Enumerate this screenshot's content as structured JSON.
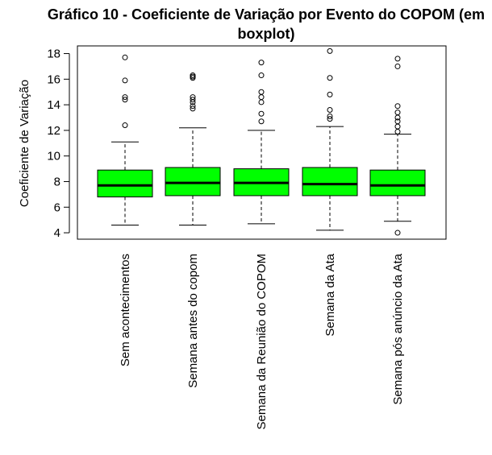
{
  "chart_data": {
    "type": "boxplot",
    "title_lines": [
      "Gráfico 10 - Coeficiente de Variação por Evento do COPOM (em",
      "boxplot)"
    ],
    "xlabel": "",
    "ylabel": "Coeficiente de Variação",
    "ylim": [
      3.5,
      18.6
    ],
    "yticks": [
      4,
      6,
      8,
      10,
      12,
      14,
      16,
      18
    ],
    "ytick_labels": [
      "4",
      "6",
      "8",
      "10",
      "12",
      "14",
      "16",
      "18"
    ],
    "grid": false,
    "box_fill": "#00ff00",
    "box_stroke": "#000000",
    "median_color": "#000000",
    "categories": [
      "Sem acontecimentos",
      "Semana antes do copom",
      "Semana da Reunião do COPOM",
      "Semana da Ata",
      "Semana pós anúncio da Ata"
    ],
    "boxes": [
      {
        "min": 4.6,
        "q1": 6.8,
        "median": 7.7,
        "q3": 8.9,
        "max": 11.1,
        "outliers": [
          12.4,
          14.4,
          14.6,
          15.9,
          17.7
        ]
      },
      {
        "min": 4.6,
        "q1": 6.9,
        "median": 7.9,
        "q3": 9.1,
        "max": 12.2,
        "outliers": [
          13.7,
          13.9,
          14.2,
          14.4,
          14.6,
          16.1,
          16.2,
          16.3
        ]
      },
      {
        "min": 4.7,
        "q1": 6.9,
        "median": 7.9,
        "q3": 9.0,
        "max": 12.0,
        "outliers": [
          12.7,
          13.3,
          14.2,
          14.6,
          15.0,
          16.3,
          17.3
        ]
      },
      {
        "min": 4.2,
        "q1": 6.9,
        "median": 7.8,
        "q3": 9.1,
        "max": 12.3,
        "outliers": [
          12.9,
          13.1,
          13.6,
          14.8,
          16.1,
          18.2
        ]
      },
      {
        "min": 4.9,
        "q1": 6.9,
        "median": 7.7,
        "q3": 8.9,
        "max": 11.7,
        "outliers": [
          4.0,
          11.9,
          12.3,
          12.7,
          13.0,
          13.4,
          13.9,
          17.0,
          17.6
        ]
      }
    ]
  }
}
